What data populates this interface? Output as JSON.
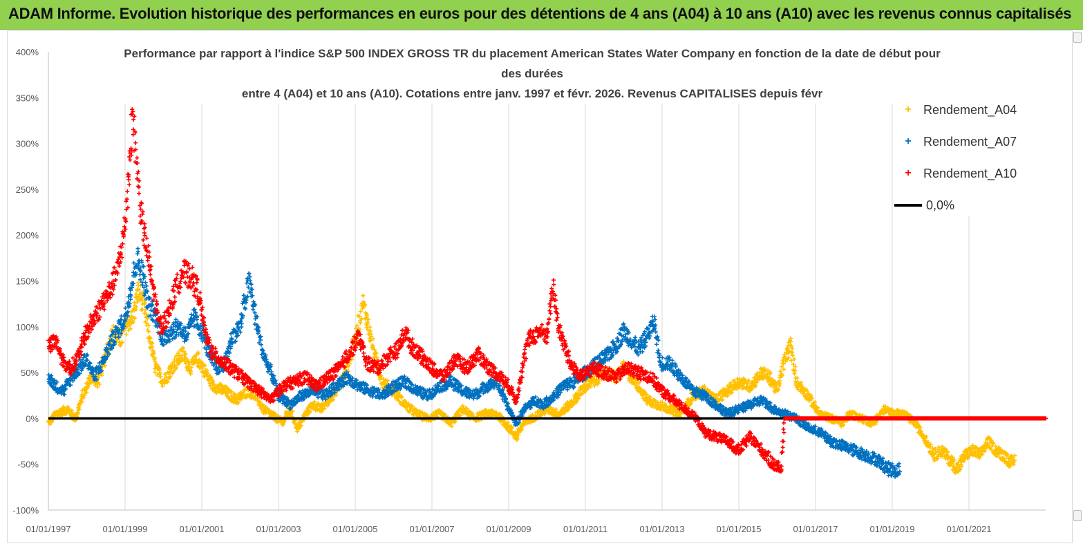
{
  "banner": {
    "title": "ADAM Informe. Evolution historique des performances en euros pour des détentions de 4 ans (A04) à 10 ans (A10) avec les revenus connus capitalisés"
  },
  "chart_data": {
    "type": "scatter",
    "title_lines": [
      "Performance par rapport à l'indice S&P 500 INDEX GROSS TR  du placement American States Water Company en fonction de la date de début pour",
      "des durées",
      "entre 4 (A04) et 10 ans (A10). Cotations entre janv. 1997 et févr. 2026. Revenus CAPITALISES depuis févr"
    ],
    "xlabel": "",
    "ylabel": "",
    "ylim": [
      -100,
      400
    ],
    "y_ticks": [
      "400%",
      "350%",
      "300%",
      "250%",
      "200%",
      "150%",
      "100%",
      "50%",
      "0%",
      "-50%",
      "-100%"
    ],
    "x_ticks": [
      "01/01/1997",
      "01/01/1999",
      "01/01/2001",
      "01/01/2003",
      "01/01/2005",
      "01/01/2007",
      "01/01/2009",
      "01/01/2011",
      "01/01/2013",
      "01/01/2015",
      "01/01/2017",
      "01/01/2019",
      "01/01/2021"
    ],
    "xlim_years": [
      1997.0,
      2023.0
    ],
    "grid": "vertical",
    "legend_position": "right",
    "reference_line": {
      "name": "0,0%",
      "y": 0,
      "color": "#000000"
    },
    "series": [
      {
        "name": "Rendement_A04",
        "color": "#ffc000",
        "x_end": 2022.2,
        "points": [
          [
            1997.0,
            -5
          ],
          [
            1997.2,
            5
          ],
          [
            1997.5,
            10
          ],
          [
            1997.7,
            0
          ],
          [
            1997.9,
            25
          ],
          [
            1998.1,
            45
          ],
          [
            1998.3,
            40
          ],
          [
            1998.5,
            70
          ],
          [
            1998.7,
            95
          ],
          [
            1998.9,
            85
          ],
          [
            1999.0,
            100
          ],
          [
            1999.2,
            110
          ],
          [
            1999.35,
            140
          ],
          [
            1999.5,
            120
          ],
          [
            1999.6,
            95
          ],
          [
            1999.8,
            55
          ],
          [
            2000.0,
            40
          ],
          [
            2000.3,
            60
          ],
          [
            2000.5,
            70
          ],
          [
            2000.7,
            55
          ],
          [
            2000.9,
            65
          ],
          [
            2001.1,
            50
          ],
          [
            2001.3,
            35
          ],
          [
            2001.6,
            30
          ],
          [
            2001.9,
            20
          ],
          [
            2002.2,
            30
          ],
          [
            2002.4,
            25
          ],
          [
            2002.6,
            10
          ],
          [
            2002.8,
            5
          ],
          [
            2003.1,
            -5
          ],
          [
            2003.3,
            10
          ],
          [
            2003.5,
            -12
          ],
          [
            2003.7,
            5
          ],
          [
            2003.9,
            15
          ],
          [
            2004.1,
            10
          ],
          [
            2004.3,
            20
          ],
          [
            2004.5,
            30
          ],
          [
            2004.7,
            45
          ],
          [
            2004.9,
            70
          ],
          [
            2005.1,
            105
          ],
          [
            2005.2,
            125
          ],
          [
            2005.35,
            100
          ],
          [
            2005.5,
            70
          ],
          [
            2005.7,
            40
          ],
          [
            2006.0,
            30
          ],
          [
            2006.3,
            15
          ],
          [
            2006.6,
            5
          ],
          [
            2006.9,
            0
          ],
          [
            2007.2,
            5
          ],
          [
            2007.5,
            -5
          ],
          [
            2007.8,
            10
          ],
          [
            2008.1,
            0
          ],
          [
            2008.4,
            5
          ],
          [
            2008.7,
            5
          ],
          [
            2009.0,
            -10
          ],
          [
            2009.2,
            -20
          ],
          [
            2009.4,
            -5
          ],
          [
            2009.6,
            0
          ],
          [
            2009.8,
            5
          ],
          [
            2010.0,
            10
          ],
          [
            2010.3,
            5
          ],
          [
            2010.6,
            15
          ],
          [
            2010.8,
            25
          ],
          [
            2011.0,
            35
          ],
          [
            2011.2,
            40
          ],
          [
            2011.5,
            50
          ],
          [
            2011.8,
            45
          ],
          [
            2012.0,
            55
          ],
          [
            2012.2,
            45
          ],
          [
            2012.4,
            35
          ],
          [
            2012.6,
            20
          ],
          [
            2012.9,
            15
          ],
          [
            2013.2,
            10
          ],
          [
            2013.5,
            5
          ],
          [
            2013.8,
            25
          ],
          [
            2014.1,
            30
          ],
          [
            2014.4,
            20
          ],
          [
            2014.7,
            30
          ],
          [
            2015.0,
            40
          ],
          [
            2015.3,
            35
          ],
          [
            2015.6,
            50
          ],
          [
            2015.8,
            45
          ],
          [
            2016.0,
            30
          ],
          [
            2016.2,
            65
          ],
          [
            2016.35,
            80
          ],
          [
            2016.5,
            40
          ],
          [
            2016.8,
            25
          ],
          [
            2017.1,
            5
          ],
          [
            2017.4,
            0
          ],
          [
            2017.7,
            -5
          ],
          [
            2017.9,
            5
          ],
          [
            2018.2,
            0
          ],
          [
            2018.5,
            -5
          ],
          [
            2018.8,
            10
          ],
          [
            2019.0,
            5
          ],
          [
            2019.3,
            5
          ],
          [
            2019.6,
            -5
          ],
          [
            2019.9,
            -25
          ],
          [
            2020.1,
            -40
          ],
          [
            2020.3,
            -35
          ],
          [
            2020.5,
            -45
          ],
          [
            2020.7,
            -55
          ],
          [
            2020.9,
            -40
          ],
          [
            2021.1,
            -35
          ],
          [
            2021.3,
            -40
          ],
          [
            2021.5,
            -25
          ],
          [
            2021.7,
            -35
          ],
          [
            2021.9,
            -40
          ],
          [
            2022.1,
            -48
          ],
          [
            2022.2,
            -45
          ]
        ]
      },
      {
        "name": "Rendement_A07",
        "color": "#0070c0",
        "x_end": 2019.2,
        "points": [
          [
            1997.0,
            45
          ],
          [
            1997.2,
            35
          ],
          [
            1997.4,
            30
          ],
          [
            1997.6,
            45
          ],
          [
            1997.8,
            55
          ],
          [
            1998.0,
            65
          ],
          [
            1998.2,
            45
          ],
          [
            1998.4,
            60
          ],
          [
            1998.6,
            80
          ],
          [
            1998.8,
            95
          ],
          [
            1999.0,
            110
          ],
          [
            1999.2,
            150
          ],
          [
            1999.3,
            175
          ],
          [
            1999.45,
            160
          ],
          [
            1999.6,
            125
          ],
          [
            1999.8,
            110
          ],
          [
            2000.0,
            85
          ],
          [
            2000.2,
            95
          ],
          [
            2000.4,
            100
          ],
          [
            2000.6,
            90
          ],
          [
            2000.8,
            110
          ],
          [
            2001.0,
            95
          ],
          [
            2001.2,
            70
          ],
          [
            2001.4,
            55
          ],
          [
            2001.6,
            60
          ],
          [
            2001.8,
            90
          ],
          [
            2002.0,
            100
          ],
          [
            2002.15,
            135
          ],
          [
            2002.25,
            150
          ],
          [
            2002.4,
            110
          ],
          [
            2002.6,
            70
          ],
          [
            2002.8,
            50
          ],
          [
            2003.0,
            25
          ],
          [
            2003.3,
            15
          ],
          [
            2003.6,
            25
          ],
          [
            2003.9,
            30
          ],
          [
            2004.2,
            25
          ],
          [
            2004.5,
            35
          ],
          [
            2004.8,
            45
          ],
          [
            2005.1,
            35
          ],
          [
            2005.4,
            30
          ],
          [
            2005.7,
            25
          ],
          [
            2006.0,
            35
          ],
          [
            2006.3,
            40
          ],
          [
            2006.6,
            30
          ],
          [
            2006.9,
            25
          ],
          [
            2007.2,
            35
          ],
          [
            2007.5,
            40
          ],
          [
            2007.8,
            30
          ],
          [
            2008.1,
            25
          ],
          [
            2008.4,
            35
          ],
          [
            2008.7,
            40
          ],
          [
            2009.0,
            10
          ],
          [
            2009.2,
            -5
          ],
          [
            2009.4,
            10
          ],
          [
            2009.7,
            20
          ],
          [
            2009.9,
            15
          ],
          [
            2010.2,
            25
          ],
          [
            2010.4,
            35
          ],
          [
            2010.7,
            40
          ],
          [
            2011.0,
            50
          ],
          [
            2011.3,
            60
          ],
          [
            2011.6,
            70
          ],
          [
            2011.8,
            80
          ],
          [
            2012.0,
            95
          ],
          [
            2012.2,
            85
          ],
          [
            2012.4,
            75
          ],
          [
            2012.6,
            90
          ],
          [
            2012.8,
            105
          ],
          [
            2012.95,
            60
          ],
          [
            2013.2,
            60
          ],
          [
            2013.5,
            45
          ],
          [
            2013.8,
            30
          ],
          [
            2014.1,
            25
          ],
          [
            2014.4,
            15
          ],
          [
            2014.7,
            5
          ],
          [
            2015.0,
            10
          ],
          [
            2015.3,
            15
          ],
          [
            2015.6,
            20
          ],
          [
            2015.9,
            10
          ],
          [
            2016.2,
            5
          ],
          [
            2016.5,
            0
          ],
          [
            2016.8,
            -10
          ],
          [
            2017.1,
            -15
          ],
          [
            2017.4,
            -25
          ],
          [
            2017.7,
            -30
          ],
          [
            2018.0,
            -35
          ],
          [
            2018.3,
            -40
          ],
          [
            2018.6,
            -45
          ],
          [
            2018.9,
            -55
          ],
          [
            2019.1,
            -57
          ],
          [
            2019.2,
            -55
          ]
        ]
      },
      {
        "name": "Rendement_A10",
        "color": "#ff0000",
        "x_end": 2023.0,
        "points": [
          [
            1997.0,
            80
          ],
          [
            1997.2,
            85
          ],
          [
            1997.4,
            60
          ],
          [
            1997.6,
            55
          ],
          [
            1997.8,
            70
          ],
          [
            1998.0,
            95
          ],
          [
            1998.2,
            110
          ],
          [
            1998.4,
            125
          ],
          [
            1998.6,
            140
          ],
          [
            1998.8,
            160
          ],
          [
            1999.0,
            210
          ],
          [
            1999.1,
            270
          ],
          [
            1999.2,
            330
          ],
          [
            1999.3,
            280
          ],
          [
            1999.4,
            230
          ],
          [
            1999.5,
            200
          ],
          [
            1999.7,
            150
          ],
          [
            1999.9,
            100
          ],
          [
            2000.1,
            110
          ],
          [
            2000.3,
            140
          ],
          [
            2000.5,
            160
          ],
          [
            2000.7,
            155
          ],
          [
            2000.9,
            140
          ],
          [
            2001.1,
            90
          ],
          [
            2001.3,
            70
          ],
          [
            2001.6,
            60
          ],
          [
            2001.9,
            50
          ],
          [
            2002.2,
            40
          ],
          [
            2002.5,
            30
          ],
          [
            2002.8,
            20
          ],
          [
            2003.1,
            35
          ],
          [
            2003.4,
            40
          ],
          [
            2003.7,
            45
          ],
          [
            2004.0,
            35
          ],
          [
            2004.3,
            45
          ],
          [
            2004.6,
            55
          ],
          [
            2004.9,
            75
          ],
          [
            2005.1,
            90
          ],
          [
            2005.3,
            60
          ],
          [
            2005.6,
            55
          ],
          [
            2005.9,
            70
          ],
          [
            2006.1,
            75
          ],
          [
            2006.3,
            95
          ],
          [
            2006.45,
            80
          ],
          [
            2007.0,
            55
          ],
          [
            2007.3,
            45
          ],
          [
            2007.6,
            65
          ],
          [
            2007.9,
            55
          ],
          [
            2008.2,
            70
          ],
          [
            2008.5,
            55
          ],
          [
            2008.8,
            45
          ],
          [
            2009.0,
            35
          ],
          [
            2009.2,
            20
          ],
          [
            2009.5,
            85
          ],
          [
            2009.8,
            95
          ],
          [
            2010.0,
            90
          ],
          [
            2010.15,
            145
          ],
          [
            2010.3,
            100
          ],
          [
            2010.6,
            60
          ],
          [
            2010.9,
            45
          ],
          [
            2011.2,
            55
          ],
          [
            2011.5,
            50
          ],
          [
            2011.8,
            45
          ],
          [
            2012.1,
            55
          ],
          [
            2012.4,
            50
          ],
          [
            2012.7,
            45
          ],
          [
            2013.0,
            30
          ],
          [
            2013.3,
            20
          ],
          [
            2013.6,
            10
          ],
          [
            2013.9,
            0
          ],
          [
            2014.1,
            -15
          ],
          [
            2014.4,
            -20
          ],
          [
            2014.7,
            -25
          ],
          [
            2015.0,
            -35
          ],
          [
            2015.3,
            -20
          ],
          [
            2015.6,
            -35
          ],
          [
            2015.9,
            -50
          ],
          [
            2016.1,
            -55
          ],
          [
            2016.2,
            0
          ],
          [
            2023.0,
            0
          ]
        ]
      }
    ]
  }
}
